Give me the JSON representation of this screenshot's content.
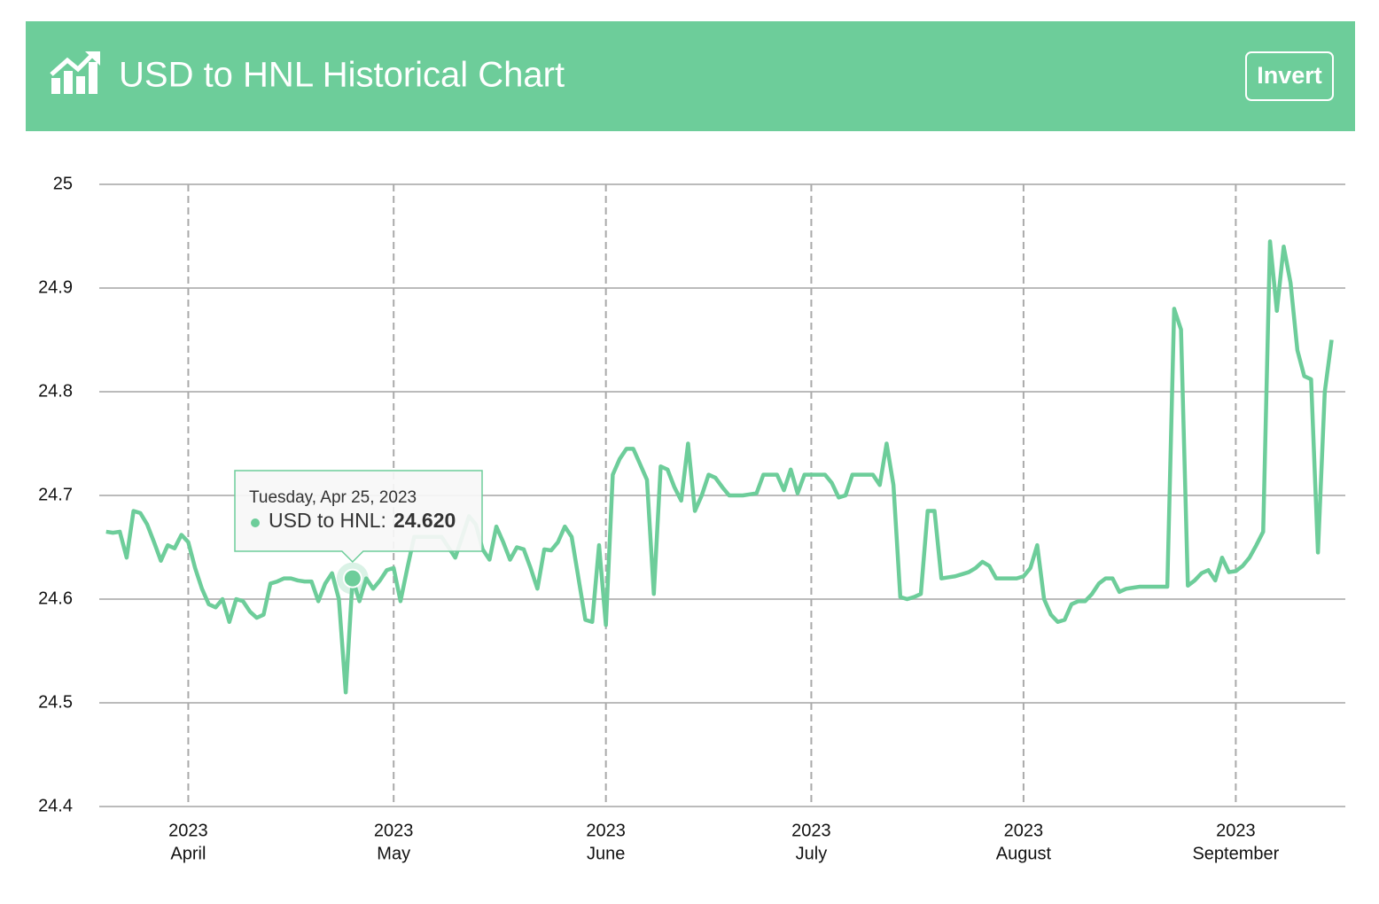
{
  "header": {
    "title": "USD to HNL Historical Chart",
    "button": "Invert"
  },
  "chart_data": {
    "type": "line",
    "x": [
      "2023-03-20",
      "2023-03-21",
      "2023-03-22",
      "2023-03-23",
      "2023-03-24",
      "2023-03-25",
      "2023-03-26",
      "2023-03-27",
      "2023-03-28",
      "2023-03-29",
      "2023-03-30",
      "2023-03-31",
      "2023-04-01",
      "2023-04-02",
      "2023-04-03",
      "2023-04-04",
      "2023-04-05",
      "2023-04-06",
      "2023-04-07",
      "2023-04-08",
      "2023-04-09",
      "2023-04-10",
      "2023-04-11",
      "2023-04-12",
      "2023-04-13",
      "2023-04-14",
      "2023-04-15",
      "2023-04-16",
      "2023-04-17",
      "2023-04-18",
      "2023-04-19",
      "2023-04-20",
      "2023-04-21",
      "2023-04-22",
      "2023-04-23",
      "2023-04-24",
      "2023-04-25",
      "2023-04-26",
      "2023-04-27",
      "2023-04-28",
      "2023-04-29",
      "2023-04-30",
      "2023-05-01",
      "2023-05-02",
      "2023-05-03",
      "2023-05-04",
      "2023-05-05",
      "2023-05-06",
      "2023-05-07",
      "2023-05-08",
      "2023-05-09",
      "2023-05-10",
      "2023-05-11",
      "2023-05-12",
      "2023-05-13",
      "2023-05-14",
      "2023-05-15",
      "2023-05-16",
      "2023-05-17",
      "2023-05-18",
      "2023-05-19",
      "2023-05-20",
      "2023-05-21",
      "2023-05-22",
      "2023-05-23",
      "2023-05-24",
      "2023-05-25",
      "2023-05-26",
      "2023-05-27",
      "2023-05-28",
      "2023-05-29",
      "2023-05-30",
      "2023-05-31",
      "2023-06-01",
      "2023-06-02",
      "2023-06-03",
      "2023-06-04",
      "2023-06-05",
      "2023-06-06",
      "2023-06-07",
      "2023-06-08",
      "2023-06-09",
      "2023-06-10",
      "2023-06-11",
      "2023-06-12",
      "2023-06-13",
      "2023-06-14",
      "2023-06-15",
      "2023-06-16",
      "2023-06-17",
      "2023-06-18",
      "2023-06-19",
      "2023-06-20",
      "2023-06-21",
      "2023-06-22",
      "2023-06-23",
      "2023-06-24",
      "2023-06-25",
      "2023-06-26",
      "2023-06-27",
      "2023-06-28",
      "2023-06-29",
      "2023-06-30",
      "2023-07-01",
      "2023-07-02",
      "2023-07-03",
      "2023-07-04",
      "2023-07-05",
      "2023-07-06",
      "2023-07-07",
      "2023-07-08",
      "2023-07-09",
      "2023-07-10",
      "2023-07-11",
      "2023-07-12",
      "2023-07-13",
      "2023-07-14",
      "2023-07-15",
      "2023-07-16",
      "2023-07-17",
      "2023-07-18",
      "2023-07-19",
      "2023-07-20",
      "2023-07-21",
      "2023-07-22",
      "2023-07-23",
      "2023-07-24",
      "2023-07-25",
      "2023-07-26",
      "2023-07-27",
      "2023-07-28",
      "2023-07-29",
      "2023-07-30",
      "2023-07-31",
      "2023-08-01",
      "2023-08-02",
      "2023-08-03",
      "2023-08-04",
      "2023-08-05",
      "2023-08-06",
      "2023-08-07",
      "2023-08-08",
      "2023-08-09",
      "2023-08-10",
      "2023-08-11",
      "2023-08-12",
      "2023-08-13",
      "2023-08-14",
      "2023-08-15",
      "2023-08-16",
      "2023-08-17",
      "2023-08-18",
      "2023-08-19",
      "2023-08-20",
      "2023-08-21",
      "2023-08-22",
      "2023-08-23",
      "2023-08-24",
      "2023-08-25",
      "2023-08-26",
      "2023-08-27",
      "2023-08-28",
      "2023-08-29",
      "2023-08-30",
      "2023-08-31",
      "2023-09-01",
      "2023-09-02",
      "2023-09-03",
      "2023-09-04",
      "2023-09-05",
      "2023-09-06",
      "2023-09-07",
      "2023-09-08",
      "2023-09-09",
      "2023-09-10",
      "2023-09-11",
      "2023-09-12",
      "2023-09-13",
      "2023-09-14",
      "2023-09-15"
    ],
    "series": [
      {
        "name": "USD to HNL",
        "color": "#6dcd9a",
        "values": [
          24.665,
          24.664,
          24.665,
          24.64,
          24.685,
          24.683,
          24.672,
          24.655,
          24.637,
          24.652,
          24.649,
          24.662,
          24.655,
          24.63,
          24.61,
          24.595,
          24.592,
          24.6,
          24.578,
          24.6,
          24.598,
          24.588,
          24.582,
          24.585,
          24.615,
          24.617,
          24.62,
          24.62,
          24.618,
          24.617,
          24.617,
          24.598,
          24.615,
          24.625,
          24.6,
          24.51,
          24.62,
          24.598,
          24.62,
          24.61,
          24.618,
          24.628,
          24.63,
          24.598,
          24.63,
          24.66,
          24.66,
          24.66,
          24.66,
          24.66,
          24.65,
          24.64,
          24.66,
          24.68,
          24.672,
          24.648,
          24.638,
          24.67,
          24.655,
          24.638,
          24.65,
          24.648,
          24.63,
          24.61,
          24.648,
          24.647,
          24.655,
          24.67,
          24.66,
          24.62,
          24.58,
          24.578,
          24.652,
          24.575,
          24.72,
          24.735,
          24.745,
          24.745,
          24.73,
          24.715,
          24.605,
          24.728,
          24.725,
          24.708,
          24.695,
          24.75,
          24.685,
          24.7,
          24.72,
          24.717,
          24.708,
          24.7,
          24.7,
          24.7,
          24.701,
          24.702,
          24.72,
          24.72,
          24.72,
          24.705,
          24.725,
          24.702,
          24.72,
          24.72,
          24.72,
          24.72,
          24.712,
          24.698,
          24.7,
          24.72,
          24.72,
          24.72,
          24.72,
          24.71,
          24.75,
          24.71,
          24.602,
          24.6,
          24.602,
          24.605,
          24.685,
          24.685,
          24.62,
          24.621,
          24.622,
          24.624,
          24.626,
          24.63,
          24.636,
          24.632,
          24.62,
          24.62,
          24.62,
          24.62,
          24.622,
          24.63,
          24.652,
          24.6,
          24.585,
          24.578,
          24.58,
          24.595,
          24.598,
          24.598,
          24.605,
          24.615,
          24.62,
          24.62,
          24.607,
          24.61,
          24.611,
          24.612,
          24.612,
          24.612,
          24.612,
          24.612,
          24.88,
          24.86,
          24.613,
          24.618,
          24.625,
          24.628,
          24.618,
          24.64,
          24.626,
          24.627,
          24.632,
          24.64,
          24.652,
          24.665,
          24.945,
          24.878,
          24.94,
          24.905,
          24.84,
          24.815,
          24.812,
          24.645,
          24.8,
          24.85
        ]
      }
    ],
    "xlim": [
      "2023-03-19",
      "2023-09-17"
    ],
    "xticks": [
      {
        "value": "2023-04-01",
        "label": [
          "2023",
          "April"
        ]
      },
      {
        "value": "2023-05-01",
        "label": [
          "2023",
          "May"
        ]
      },
      {
        "value": "2023-06-01",
        "label": [
          "2023",
          "June"
        ]
      },
      {
        "value": "2023-07-01",
        "label": [
          "2023",
          "July"
        ]
      },
      {
        "value": "2023-08-01",
        "label": [
          "2023",
          "August"
        ]
      },
      {
        "value": "2023-09-01",
        "label": [
          "2023",
          "September"
        ]
      }
    ],
    "ylim": [
      24.4,
      25
    ],
    "yticks": [
      24.4,
      24.5,
      24.6,
      24.7,
      24.8,
      24.9,
      25
    ],
    "grid": true,
    "tooltip": {
      "x": "2023-04-25",
      "title": "Tuesday, Apr 25, 2023",
      "label": "USD to HNL:",
      "value": "24.620"
    }
  }
}
